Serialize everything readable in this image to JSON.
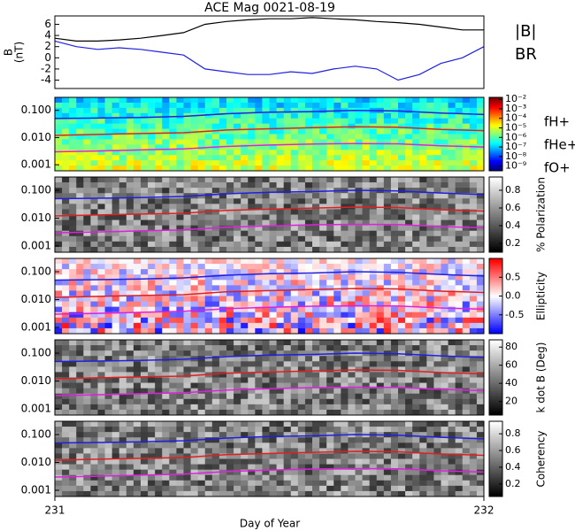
{
  "chart_data": [
    {
      "type": "line",
      "title": "ACE Mag 0021-08-19",
      "ylabel": [
        "B",
        "(nT)"
      ],
      "xlabel": "Day of Year",
      "x": [
        231.0,
        231.05,
        231.1,
        231.15,
        231.2,
        231.25,
        231.3,
        231.35,
        231.4,
        231.45,
        231.5,
        231.55,
        231.6,
        231.65,
        231.7,
        231.75,
        231.8,
        231.85,
        231.9,
        231.95,
        232.0
      ],
      "xlim": [
        231,
        232
      ],
      "xticks": [
        231,
        232
      ],
      "ylim": [
        -5.5,
        7.5
      ],
      "yticks": [
        6,
        4,
        2,
        0,
        -2,
        -4
      ],
      "series": [
        {
          "name": "|B|",
          "color": "#000000",
          "values": [
            3.5,
            3,
            3,
            3.2,
            3.5,
            4,
            4.5,
            6,
            6.5,
            6.8,
            7,
            7,
            7.2,
            7,
            6.8,
            6.5,
            6.3,
            6,
            5.5,
            5,
            5
          ]
        },
        {
          "name": "BR",
          "color": "#2020e0",
          "values": [
            3,
            2,
            1.5,
            1.8,
            1.5,
            1,
            0.5,
            -2,
            -2.5,
            -3,
            -3,
            -2.5,
            -2.8,
            -2,
            -1.5,
            -2,
            -4,
            -3,
            -1,
            0,
            2
          ]
        }
      ]
    },
    {
      "type": "spectrogram",
      "colormap": "jet",
      "log": true,
      "x": [
        231.0,
        231.1,
        231.2,
        231.3,
        231.4,
        231.5,
        231.6,
        231.7,
        231.8,
        231.9,
        232.0
      ],
      "ylim": [
        0.0006,
        0.3
      ],
      "yticks": [
        {
          "value": 0.1,
          "label": "0.100"
        },
        {
          "value": 0.01,
          "label": "0.010"
        },
        {
          "value": 0.001,
          "label": "0.001"
        }
      ],
      "clim": [
        -9.5,
        -1.8
      ],
      "cticks": [
        {
          "value": -2,
          "label": "10⁻²"
        },
        {
          "value": -3,
          "label": "10⁻³"
        },
        {
          "value": -4,
          "label": "10⁻⁴"
        },
        {
          "value": -5,
          "label": "10⁻⁵"
        },
        {
          "value": -6,
          "label": "10⁻⁶"
        },
        {
          "value": -7,
          "label": "10⁻⁷"
        },
        {
          "value": -8,
          "label": "10⁻⁸"
        },
        {
          "value": -9,
          "label": "10⁻⁹"
        }
      ],
      "series": [
        {
          "name": "fH+",
          "color": "#2020e0",
          "values": [
            0.05,
            0.052,
            0.055,
            0.06,
            0.075,
            0.085,
            0.09,
            0.1,
            0.095,
            0.08,
            0.07
          ]
        },
        {
          "name": "fHe+",
          "color": "#e02020",
          "values": [
            0.012,
            0.013,
            0.014,
            0.015,
            0.019,
            0.021,
            0.023,
            0.025,
            0.024,
            0.02,
            0.018
          ]
        },
        {
          "name": "fO+",
          "color": "#e020e0",
          "values": [
            0.003,
            0.0032,
            0.0035,
            0.0038,
            0.0047,
            0.0053,
            0.0058,
            0.006,
            0.0059,
            0.005,
            0.0045
          ]
        }
      ]
    },
    {
      "type": "spectrogram",
      "colormap": "gray",
      "log": true,
      "clabel": "% Polarization",
      "x": [
        231.0,
        231.1,
        231.2,
        231.3,
        231.4,
        231.5,
        231.6,
        231.7,
        231.8,
        231.9,
        232.0
      ],
      "ylim": [
        0.0006,
        0.3
      ],
      "yticks": [
        {
          "value": 0.1,
          "label": "0.100"
        },
        {
          "value": 0.01,
          "label": "0.010"
        },
        {
          "value": 0.001,
          "label": "0.001"
        }
      ],
      "clim": [
        0.1,
        0.95
      ],
      "cticks": [
        0.8,
        0.6,
        0.4,
        0.2
      ],
      "series": [
        {
          "color": "#2020e0",
          "values": [
            0.05,
            0.052,
            0.055,
            0.06,
            0.075,
            0.085,
            0.09,
            0.1,
            0.095,
            0.08,
            0.07
          ]
        },
        {
          "color": "#e02020",
          "values": [
            0.012,
            0.013,
            0.014,
            0.015,
            0.019,
            0.021,
            0.023,
            0.025,
            0.024,
            0.02,
            0.018
          ]
        },
        {
          "color": "#e020e0",
          "values": [
            0.003,
            0.0032,
            0.0035,
            0.0038,
            0.0047,
            0.0053,
            0.0058,
            0.006,
            0.0059,
            0.005,
            0.0045
          ]
        }
      ]
    },
    {
      "type": "spectrogram",
      "colormap": "bwr",
      "log": true,
      "clabel": "Ellipticity",
      "x": [
        231.0,
        231.1,
        231.2,
        231.3,
        231.4,
        231.5,
        231.6,
        231.7,
        231.8,
        231.9,
        232.0
      ],
      "ylim": [
        0.0006,
        0.3
      ],
      "yticks": [
        {
          "value": 0.1,
          "label": "0.100"
        },
        {
          "value": 0.01,
          "label": "0.010"
        },
        {
          "value": 0.001,
          "label": "0.001"
        }
      ],
      "clim": [
        -1,
        1
      ],
      "cticks": [
        0.5,
        {
          "value": 0,
          "label": "0.0"
        },
        -0.5
      ],
      "series": [
        {
          "color": "#2020e0",
          "values": [
            0.05,
            0.052,
            0.055,
            0.06,
            0.075,
            0.085,
            0.09,
            0.1,
            0.095,
            0.08,
            0.07
          ]
        },
        {
          "color": "#e02020",
          "values": [
            0.012,
            0.013,
            0.014,
            0.015,
            0.019,
            0.021,
            0.023,
            0.025,
            0.024,
            0.02,
            0.018
          ]
        },
        {
          "color": "#e020e0",
          "values": [
            0.003,
            0.0032,
            0.0035,
            0.0038,
            0.0047,
            0.0053,
            0.0058,
            0.006,
            0.0059,
            0.005,
            0.0045
          ]
        }
      ]
    },
    {
      "type": "spectrogram",
      "colormap": "gray",
      "log": true,
      "clabel": "k dot B (Deg)",
      "x": [
        231.0,
        231.1,
        231.2,
        231.3,
        231.4,
        231.5,
        231.6,
        231.7,
        231.8,
        231.9,
        232.0
      ],
      "ylim": [
        0.0006,
        0.3
      ],
      "yticks": [
        {
          "value": 0.1,
          "label": "0.100"
        },
        {
          "value": 0.01,
          "label": "0.010"
        },
        {
          "value": 0.001,
          "label": "0.001"
        }
      ],
      "clim": [
        5,
        88
      ],
      "cticks": [
        80,
        60,
        40,
        20
      ],
      "series": [
        {
          "color": "#2020e0",
          "values": [
            0.05,
            0.052,
            0.055,
            0.06,
            0.075,
            0.085,
            0.09,
            0.1,
            0.095,
            0.08,
            0.07
          ]
        },
        {
          "color": "#e02020",
          "values": [
            0.012,
            0.013,
            0.014,
            0.015,
            0.019,
            0.021,
            0.023,
            0.025,
            0.024,
            0.02,
            0.018
          ]
        },
        {
          "color": "#e020e0",
          "values": [
            0.003,
            0.0032,
            0.0035,
            0.0038,
            0.0047,
            0.0053,
            0.0058,
            0.006,
            0.0059,
            0.005,
            0.0045
          ]
        }
      ]
    },
    {
      "type": "spectrogram",
      "colormap": "gray",
      "log": true,
      "clabel": "Coherency",
      "x": [
        231.0,
        231.1,
        231.2,
        231.3,
        231.4,
        231.5,
        231.6,
        231.7,
        231.8,
        231.9,
        232.0
      ],
      "ylim": [
        0.0006,
        0.3
      ],
      "yticks": [
        {
          "value": 0.1,
          "label": "0.100"
        },
        {
          "value": 0.01,
          "label": "0.010"
        },
        {
          "value": 0.001,
          "label": "0.001"
        }
      ],
      "clim": [
        0.05,
        0.95
      ],
      "cticks": [
        0.8,
        0.6,
        0.4,
        0.2
      ],
      "series": [
        {
          "color": "#2020e0",
          "values": [
            0.05,
            0.052,
            0.055,
            0.06,
            0.075,
            0.085,
            0.09,
            0.1,
            0.095,
            0.08,
            0.07
          ]
        },
        {
          "color": "#e02020",
          "values": [
            0.012,
            0.013,
            0.014,
            0.015,
            0.019,
            0.021,
            0.023,
            0.025,
            0.024,
            0.02,
            0.018
          ]
        },
        {
          "color": "#e020e0",
          "values": [
            0.003,
            0.0032,
            0.0035,
            0.0038,
            0.0047,
            0.0053,
            0.0058,
            0.006,
            0.0059,
            0.005,
            0.0045
          ]
        }
      ]
    }
  ]
}
